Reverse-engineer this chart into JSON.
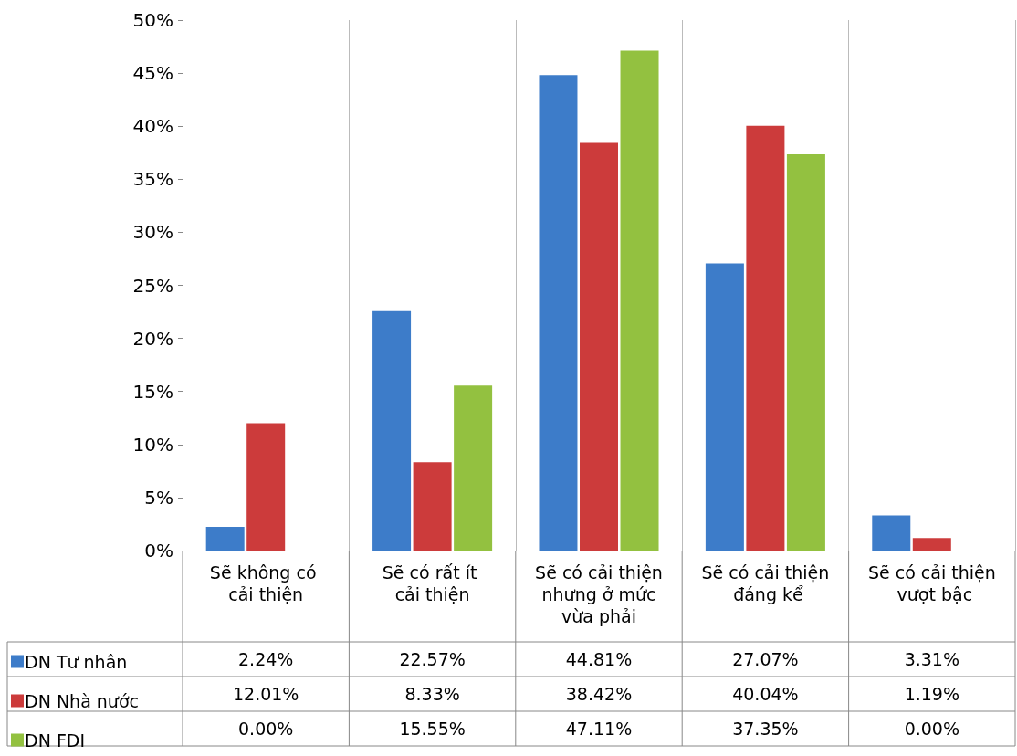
{
  "chart_data": {
    "type": "bar",
    "categories": [
      "Sẽ không có cải thiện",
      "Sẽ có rất ít cải thiện",
      "Sẽ có cải thiện nhưng ở mức vừa phải",
      "Sẽ có cải thiện đáng kể",
      "Sẽ có cải thiện vượt bậc"
    ],
    "series": [
      {
        "name": "DN Tư nhân",
        "color": "#3d7cc9",
        "values": [
          2.24,
          22.57,
          44.81,
          27.07,
          3.31
        ],
        "value_labels": [
          "2.24%",
          "22.57%",
          "44.81%",
          "27.07%",
          "3.31%"
        ]
      },
      {
        "name": "DN Nhà nước",
        "color": "#cc3b3b",
        "values": [
          12.01,
          8.33,
          38.42,
          40.04,
          1.19
        ],
        "value_labels": [
          "12.01%",
          "8.33%",
          "38.42%",
          "40.04%",
          "1.19%"
        ]
      },
      {
        "name": "DN FDI",
        "color": "#93c140",
        "values": [
          0,
          15.55,
          47.11,
          37.35,
          0
        ],
        "value_labels": [
          "0.00%",
          "15.55%",
          "47.11%",
          "37.35%",
          "0.00%"
        ]
      }
    ],
    "ylim": [
      0,
      50
    ],
    "yticks": [
      {
        "value": 0,
        "label": "0%"
      },
      {
        "value": 5,
        "label": "5%"
      },
      {
        "value": 10,
        "label": "10%"
      },
      {
        "value": 15,
        "label": "15%"
      },
      {
        "value": 20,
        "label": "20%"
      },
      {
        "value": 25,
        "label": "25%"
      },
      {
        "value": 30,
        "label": "30%"
      },
      {
        "value": 35,
        "label": "35%"
      },
      {
        "value": 40,
        "label": "40%"
      },
      {
        "value": 45,
        "label": "45%"
      },
      {
        "value": 50,
        "label": "50%"
      }
    ],
    "grid": "x",
    "legend": "bottom left"
  }
}
